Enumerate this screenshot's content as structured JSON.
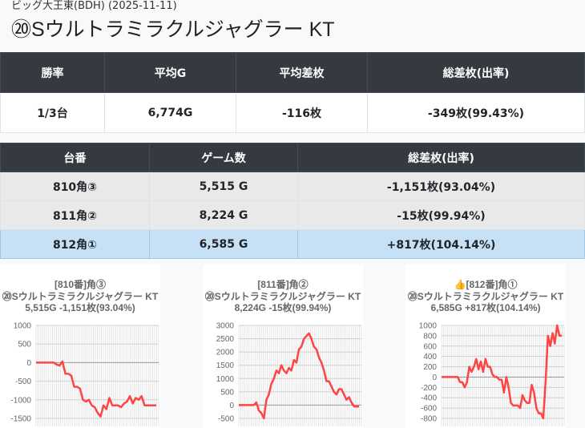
{
  "header": {
    "subtitle": "ビッグ大王東(BDH) (2025-11-11)",
    "title": "⑳Sウルトラミラクルジャグラー KT"
  },
  "summary": {
    "headers": [
      "勝率",
      "平均G",
      "平均差枚",
      "総差枚(出率)"
    ],
    "values": [
      "1/3台",
      "6,774G",
      "-116枚",
      "-349枚(99.43%)"
    ]
  },
  "machines": {
    "headers": [
      "台番",
      "ゲーム数",
      "総差枚(出率)"
    ],
    "rows": [
      [
        "810角③",
        "5,515 G",
        "-1,151枚(93.04%)"
      ],
      [
        "811角②",
        "8,224 G",
        "-15枚(99.94%)"
      ],
      [
        "812角①",
        "6,585 G",
        "+817枚(104.14%)"
      ]
    ],
    "highlight_row": 2,
    "highlight_color": "#c6e0f5"
  },
  "chart_data": [
    {
      "type": "line",
      "title_lines": [
        "[810番]角③",
        "⑳Sウルトラミラクルジャグラー KT",
        "5,515G -1,151枚(93.04%)"
      ],
      "ylim": [
        -1500,
        1000
      ],
      "yticks": [
        1000,
        500,
        0,
        -500,
        -1000,
        -1500
      ],
      "grid": true,
      "color": "#ff4444",
      "values": [
        0,
        0,
        0,
        0,
        0,
        0,
        0,
        -50,
        -80,
        30,
        -300,
        -300,
        -350,
        -650,
        -650,
        -700,
        -1000,
        -1050,
        -1000,
        -1150,
        -1200,
        -1350,
        -1450,
        -1150,
        -1250,
        -950,
        -1150,
        -1150,
        -1150,
        -1200,
        -1100,
        -1050,
        -900,
        -1100,
        -950,
        -1000,
        -900,
        -1150,
        -1150,
        -1150,
        -1150,
        -1150
      ]
    },
    {
      "type": "line",
      "title_lines": [
        "[811番]角②",
        "⑳Sウルトラミラクルジャグラー KT",
        "8,224G -15枚(99.94%)"
      ],
      "ylim": [
        -500,
        3000
      ],
      "yticks": [
        3000,
        2500,
        2000,
        1500,
        1000,
        500,
        0,
        -500
      ],
      "grid": true,
      "color": "#ff4444",
      "values": [
        0,
        0,
        0,
        0,
        0,
        0,
        0,
        100,
        -200,
        -300,
        -500,
        200,
        400,
        800,
        1000,
        1300,
        1200,
        1500,
        1300,
        1200,
        1400,
        1300,
        1700,
        1600,
        2100,
        2200,
        2500,
        2600,
        2700,
        2500,
        2200,
        2100,
        1800,
        1600,
        1300,
        900,
        900,
        700,
        500,
        400,
        600,
        600,
        400,
        200,
        300,
        100,
        -50,
        -50,
        -50
      ]
    },
    {
      "type": "line",
      "title_lines": [
        "👍[812番]角①",
        "⑳Sウルトラミラクルジャグラー KT",
        "6,585G +817枚(104.14%)"
      ],
      "ylim": [
        -800,
        1000
      ],
      "yticks": [
        1000,
        800,
        600,
        400,
        200,
        0,
        -200,
        -400,
        -600,
        -800
      ],
      "grid": true,
      "color": "#ff4444",
      "values": [
        0,
        0,
        0,
        0,
        0,
        0,
        0,
        0,
        -100,
        -100,
        -200,
        -100,
        200,
        100,
        200,
        350,
        150,
        300,
        100,
        350,
        200,
        200,
        50,
        0,
        0,
        -50,
        -50,
        -300,
        0,
        -200,
        -500,
        -550,
        -550,
        -550,
        -600,
        -350,
        -450,
        -500,
        -500,
        -150,
        -300,
        -600,
        -700,
        -700,
        -800,
        -100,
        800,
        600,
        850,
        650,
        1000,
        800,
        800
      ]
    }
  ]
}
